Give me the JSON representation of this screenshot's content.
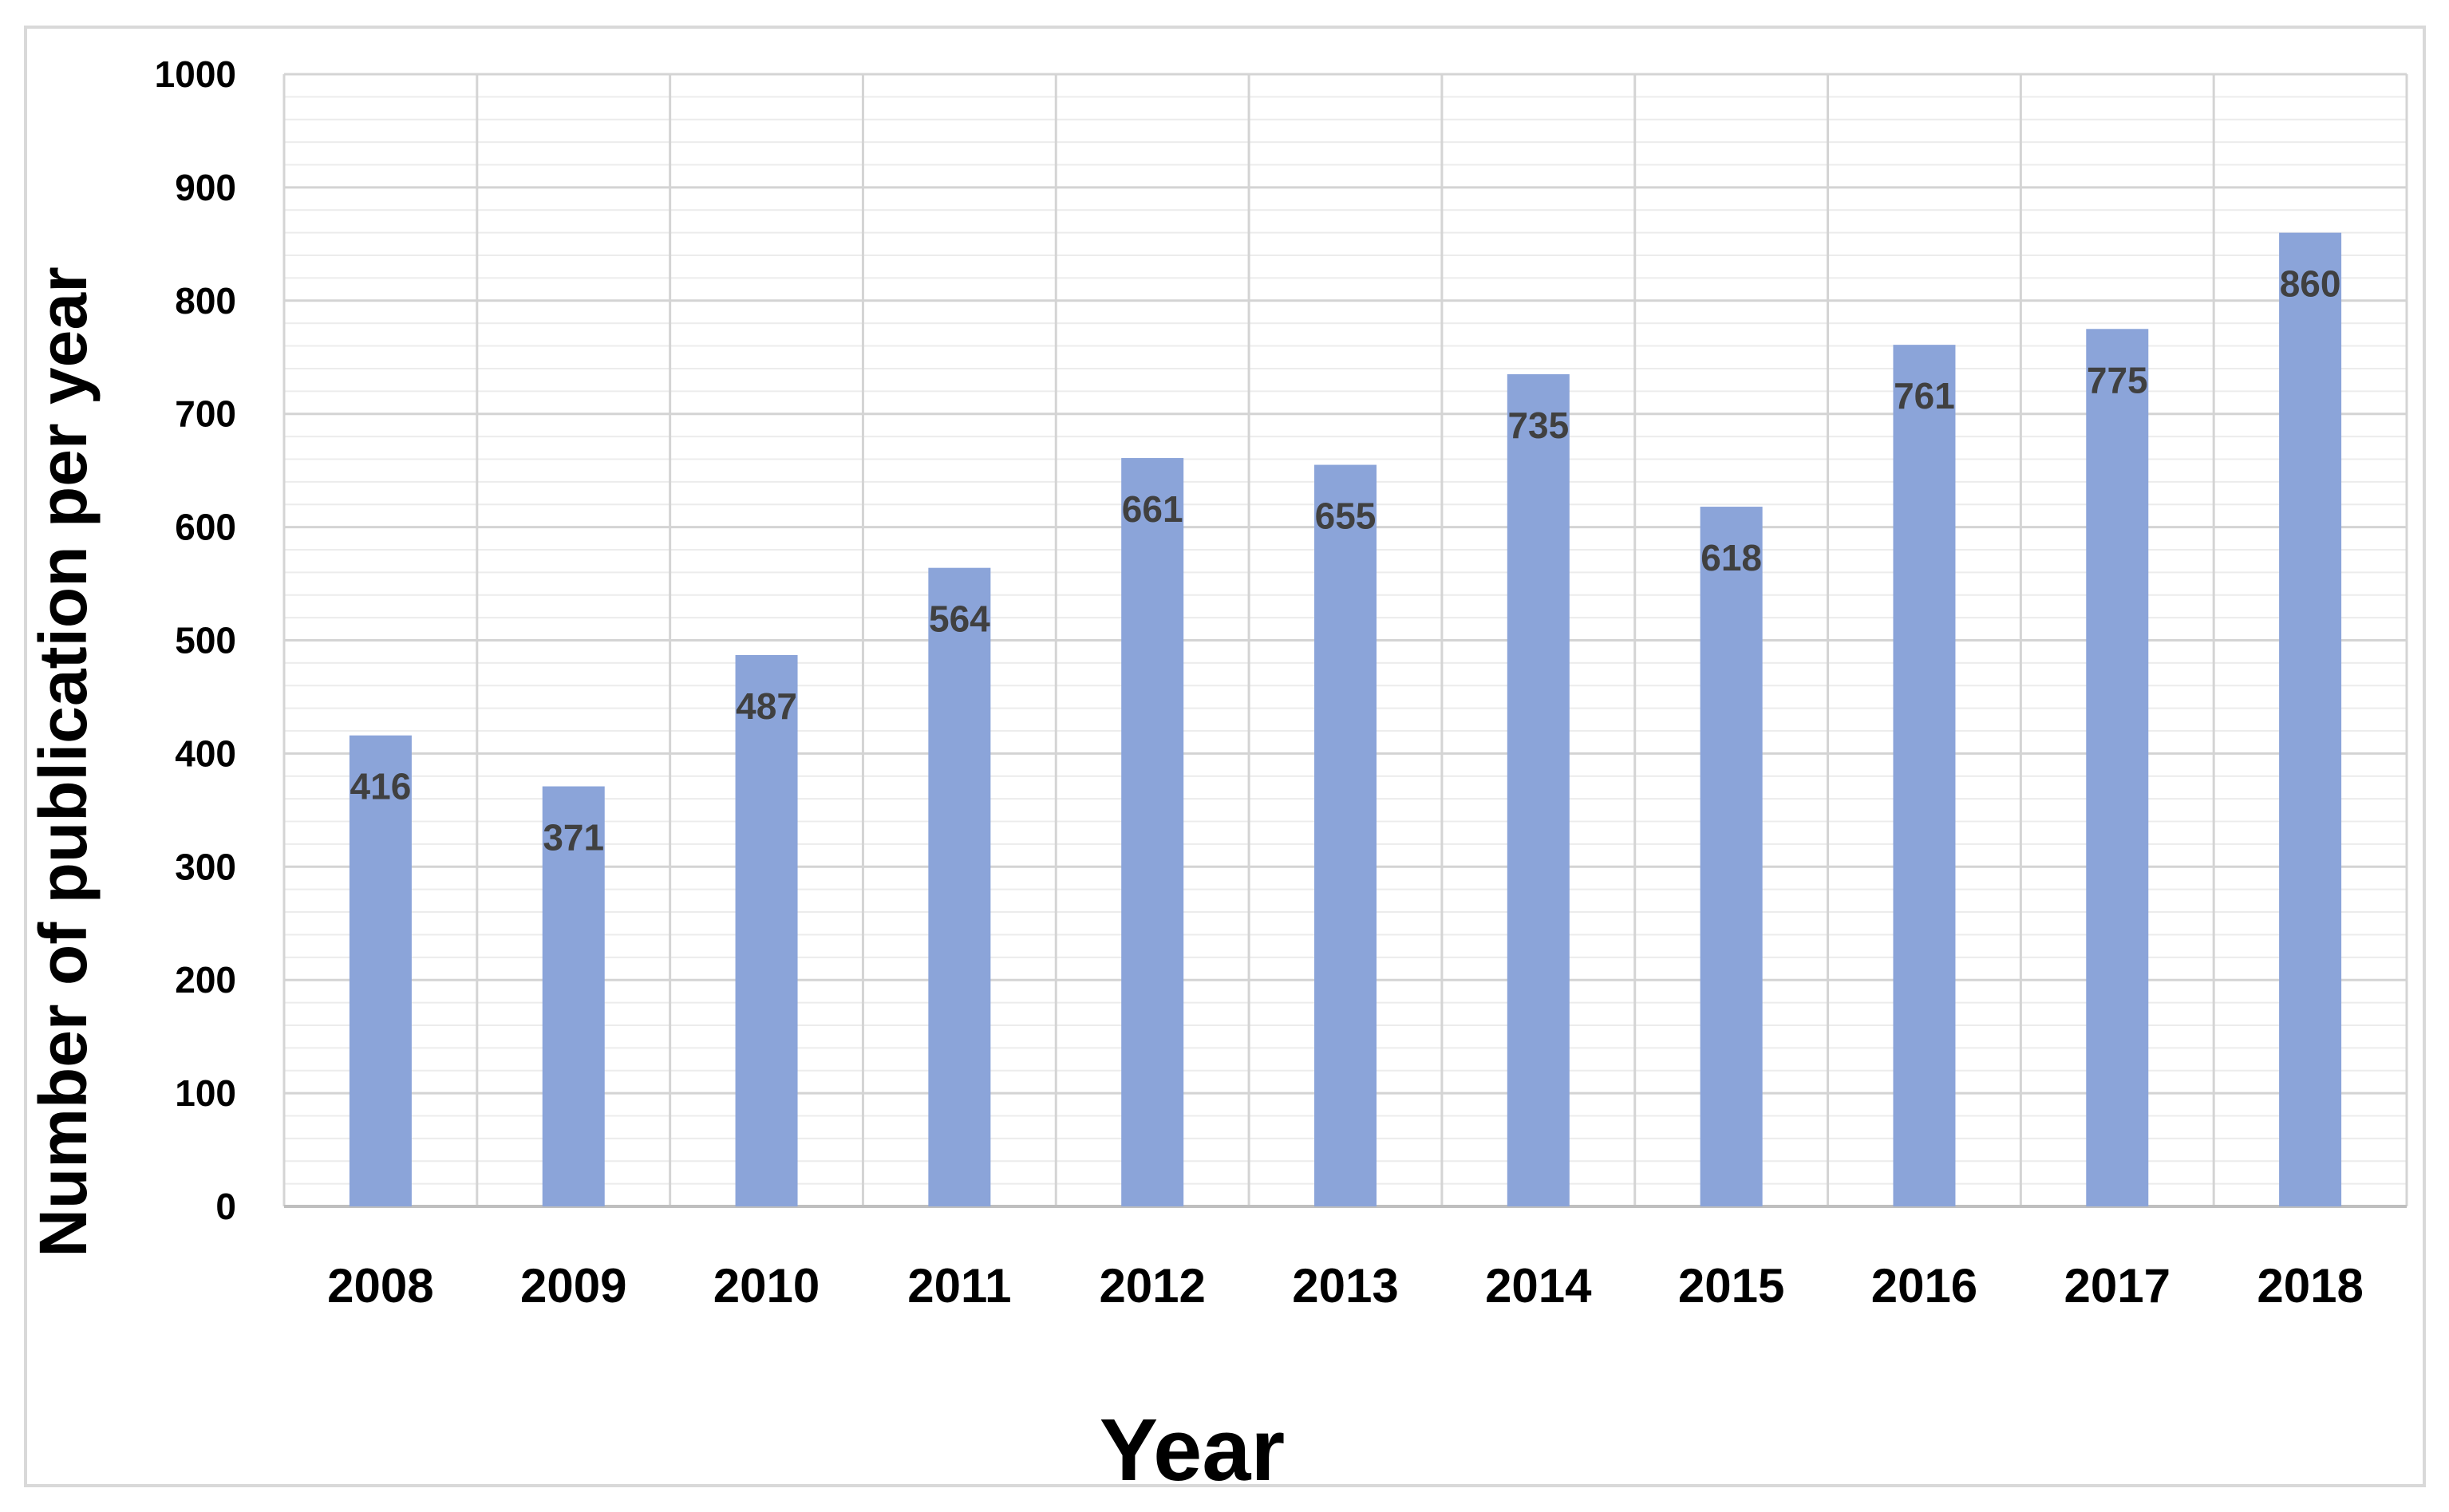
{
  "chart_data": {
    "type": "bar",
    "categories": [
      "2008",
      "2009",
      "2010",
      "2011",
      "2012",
      "2013",
      "2014",
      "2015",
      "2016",
      "2017",
      "2018"
    ],
    "values": [
      416,
      371,
      487,
      564,
      661,
      655,
      735,
      618,
      761,
      775,
      860
    ],
    "data_labels": [
      "416",
      "371",
      "487",
      "564",
      "661",
      "655",
      "735",
      "618",
      "761",
      "775",
      "860"
    ],
    "y_ticks": [
      "0",
      "100",
      "200",
      "300",
      "400",
      "500",
      "600",
      "700",
      "800",
      "900",
      "1000"
    ],
    "xlabel": "Year",
    "ylabel": "Number of publication per year",
    "ylim": [
      0,
      1000
    ],
    "major_grid": true,
    "minor_grid": true,
    "bar_color": "#8ba4d9",
    "label_color": "#404040"
  }
}
